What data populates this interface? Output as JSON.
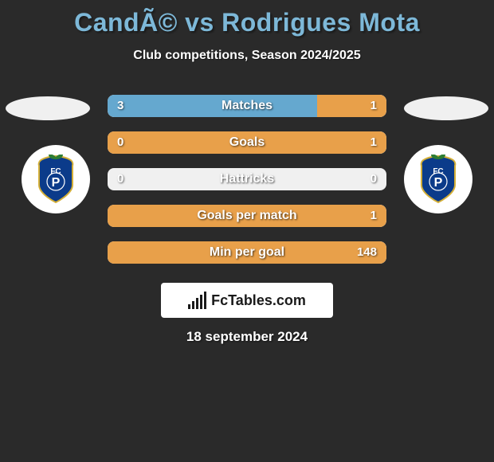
{
  "title": "CandÃ© vs Rodrigues Mota",
  "subtitle": "Club competitions, Season 2024/2025",
  "date": "18 september 2024",
  "branding": "FcTables.com",
  "colors": {
    "background": "#2a2a2a",
    "title": "#7db8d8",
    "bar_background": "#f0f0f0",
    "left": "#65a8cf",
    "right": "#e8a04a",
    "text": "#ffffff"
  },
  "club_crest": {
    "shield_fill": "#0b3b8a",
    "shield_stroke": "#d4af37",
    "letters_fill": "#ffffff",
    "dragon_fill": "#2e7d32"
  },
  "stats": [
    {
      "label": "Matches",
      "left_val": "3",
      "right_val": "1",
      "left_pct": 75,
      "right_pct": 25
    },
    {
      "label": "Goals",
      "left_val": "0",
      "right_val": "1",
      "left_pct": 0,
      "right_pct": 100
    },
    {
      "label": "Hattricks",
      "left_val": "0",
      "right_val": "0",
      "left_pct": 0,
      "right_pct": 0
    },
    {
      "label": "Goals per match",
      "left_val": "",
      "right_val": "1",
      "left_pct": 0,
      "right_pct": 100
    },
    {
      "label": "Min per goal",
      "left_val": "",
      "right_val": "148",
      "left_pct": 0,
      "right_pct": 100
    }
  ]
}
